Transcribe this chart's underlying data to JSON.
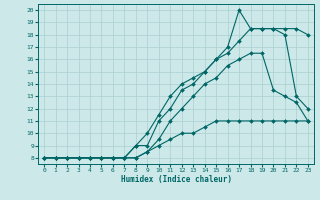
{
  "xlabel": "Humidex (Indice chaleur)",
  "background_color": "#cce8e8",
  "line_color": "#006666",
  "grid_color": "#aacfcf",
  "xlim": [
    -0.5,
    23.5
  ],
  "ylim": [
    7.5,
    20.5
  ],
  "xticks": [
    0,
    1,
    2,
    3,
    4,
    5,
    6,
    7,
    8,
    9,
    10,
    11,
    12,
    13,
    14,
    15,
    16,
    17,
    18,
    19,
    20,
    21,
    22,
    23
  ],
  "yticks": [
    8,
    9,
    10,
    11,
    12,
    13,
    14,
    15,
    16,
    17,
    18,
    19,
    20
  ],
  "line1_x": [
    0,
    1,
    2,
    3,
    4,
    5,
    6,
    7,
    8,
    9,
    10,
    11,
    12,
    13,
    14,
    15,
    16,
    17,
    18,
    19,
    20,
    21,
    22,
    23
  ],
  "line1_y": [
    8,
    8,
    8,
    8,
    8,
    8,
    8,
    8,
    8,
    8.5,
    9,
    9.5,
    10,
    10,
    10.5,
    11,
    11,
    11,
    11,
    11,
    11,
    11,
    11,
    11
  ],
  "line2_x": [
    0,
    1,
    2,
    3,
    4,
    5,
    6,
    7,
    8,
    9,
    10,
    11,
    12,
    13,
    14,
    15,
    16,
    17,
    18,
    19,
    20,
    21,
    22,
    23
  ],
  "line2_y": [
    8,
    8,
    8,
    8,
    8,
    8,
    8,
    8,
    8,
    8.5,
    9.5,
    11,
    12,
    13,
    14,
    14.5,
    15.5,
    16,
    16.5,
    16.5,
    13.5,
    13,
    12.5,
    11
  ],
  "line3_x": [
    0,
    1,
    2,
    3,
    4,
    5,
    6,
    7,
    8,
    9,
    10,
    11,
    12,
    13,
    14,
    15,
    16,
    17,
    18,
    19,
    20,
    21,
    22,
    23
  ],
  "line3_y": [
    8,
    8,
    8,
    8,
    8,
    8,
    8,
    8,
    9,
    10,
    11.5,
    13,
    14,
    14.5,
    15,
    16,
    16.5,
    17.5,
    18.5,
    18.5,
    18.5,
    18.5,
    18.5,
    18
  ],
  "line4_x": [
    0,
    1,
    2,
    3,
    4,
    5,
    6,
    7,
    8,
    9,
    10,
    11,
    12,
    13,
    14,
    15,
    16,
    17,
    18,
    19,
    20,
    21,
    22,
    23
  ],
  "line4_y": [
    8,
    8,
    8,
    8,
    8,
    8,
    8,
    8,
    9,
    9,
    11,
    12,
    13.5,
    14,
    15,
    16,
    17,
    20,
    18.5,
    18.5,
    18.5,
    18,
    13,
    12
  ]
}
